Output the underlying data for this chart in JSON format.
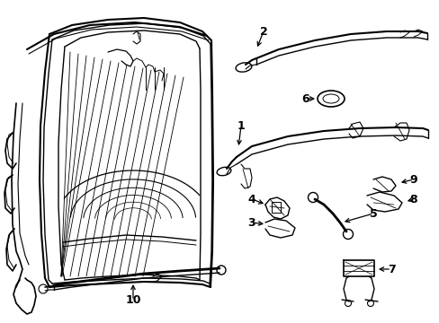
{
  "background_color": "#ffffff",
  "line_color": "#000000",
  "figsize": [
    4.89,
    3.6
  ],
  "dpi": 100,
  "parts": {
    "2_strip": {
      "color": "#000000"
    },
    "6_oval": {
      "color": "#000000"
    },
    "1_frame": {
      "color": "#000000"
    },
    "9_clip": {
      "color": "#000000"
    },
    "8_clip": {
      "color": "#000000"
    },
    "4_bracket": {
      "color": "#000000"
    },
    "3_pin": {
      "color": "#000000"
    },
    "5_rod": {
      "color": "#000000"
    },
    "7_mount": {
      "color": "#000000"
    },
    "10_bar": {
      "color": "#000000"
    }
  }
}
